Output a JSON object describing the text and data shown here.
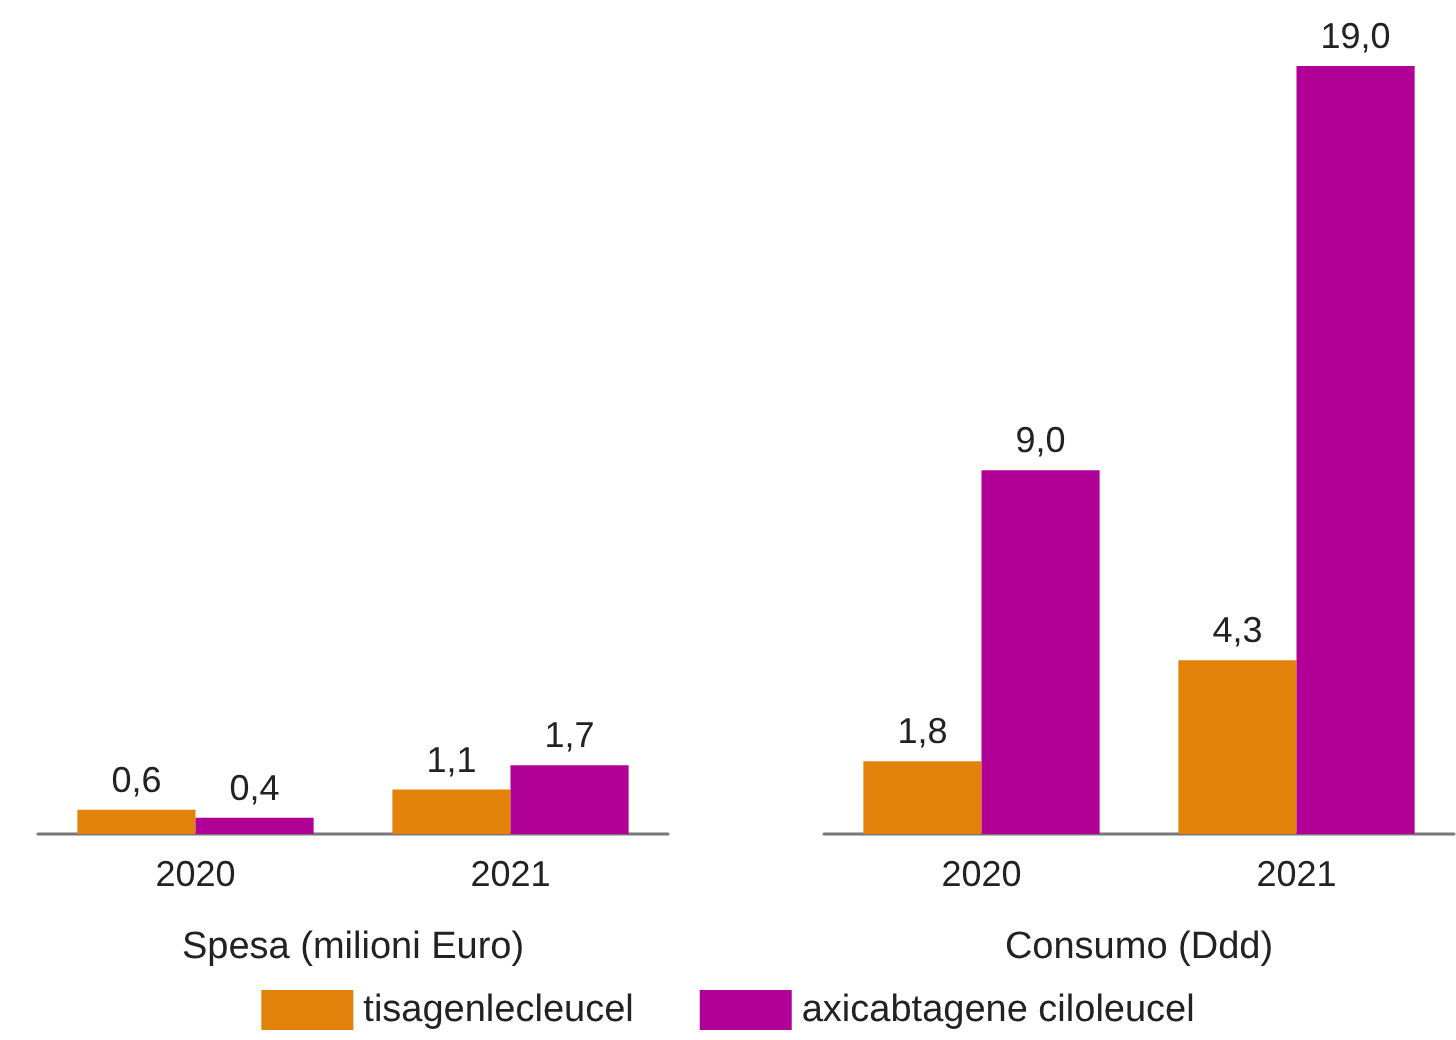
{
  "chart_data": [
    {
      "type": "bar",
      "xlabel": "Spesa (milioni Euro)",
      "categories": [
        "2020",
        "2021"
      ],
      "series": [
        {
          "name": "tisagenlecleucel",
          "color": "#e2820a",
          "values": [
            0.6,
            1.1
          ],
          "value_labels": [
            "0,6",
            "1,1"
          ]
        },
        {
          "name": "axicabtagene ciloleucel",
          "color": "#b10096",
          "values": [
            0.4,
            1.7
          ],
          "value_labels": [
            "0,4",
            "1,7"
          ]
        }
      ],
      "legend": "bottom",
      "tick_labels": "x"
    },
    {
      "type": "bar",
      "xlabel": "Consumo (Ddd)",
      "categories": [
        "2020",
        "2021"
      ],
      "series": [
        {
          "color": "#e2820a",
          "values": [
            1.8,
            4.3
          ],
          "value_labels": [
            "1,8",
            "4,3"
          ]
        },
        {
          "color": "#b10096",
          "values": [
            9.0,
            19.0
          ],
          "value_labels": [
            "9,0",
            "19,0"
          ]
        }
      ],
      "tick_labels": "x"
    }
  ]
}
